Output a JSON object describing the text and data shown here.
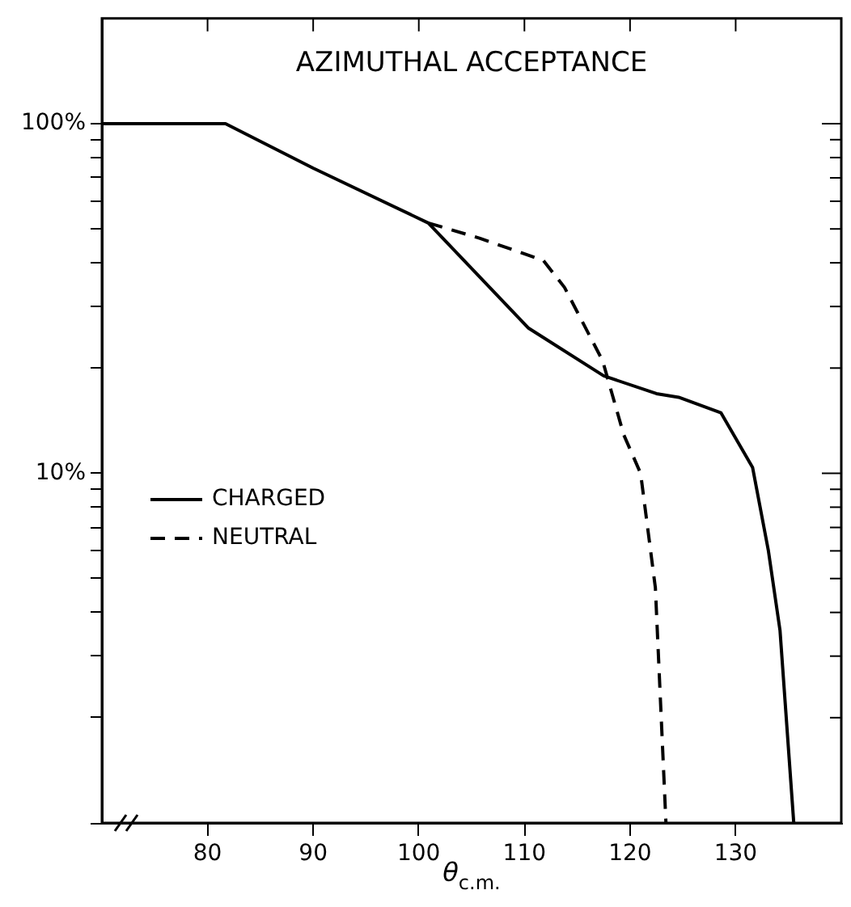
{
  "chart_data": {
    "type": "line",
    "title": "AZIMUTHAL ACCEPTANCE",
    "xlabel": "θ$_{c.m.}$",
    "log": "y",
    "xlim": [
      70,
      140
    ],
    "xticks": [
      80,
      90,
      100,
      110,
      120,
      130
    ],
    "ylim": [
      1,
      200
    ],
    "yticks": [
      {
        "value": 1,
        "label": null
      },
      {
        "value": 2,
        "label": null
      },
      {
        "value": 3,
        "label": null
      },
      {
        "value": 4,
        "label": null
      },
      {
        "value": 5,
        "label": null
      },
      {
        "value": 6,
        "label": null
      },
      {
        "value": 7,
        "label": null
      },
      {
        "value": 8,
        "label": null
      },
      {
        "value": 9,
        "label": null
      },
      {
        "value": 10,
        "label": "10%"
      },
      {
        "value": 20,
        "label": null
      },
      {
        "value": 30,
        "label": null
      },
      {
        "value": 40,
        "label": null
      },
      {
        "value": 50,
        "label": null
      },
      {
        "value": 60,
        "label": null
      },
      {
        "value": 70,
        "label": null
      },
      {
        "value": 80,
        "label": null
      },
      {
        "value": 90,
        "label": null
      },
      {
        "value": 100,
        "label": "100%"
      }
    ],
    "grid": false,
    "legend": "bottom left",
    "marker": "none",
    "series": [
      {
        "name": "CHARGED",
        "color": "#000000",
        "line_style": "solid",
        "x": [
          70,
          81.7,
          90,
          100.9,
          110.4,
          117.5,
          122.5,
          124.6,
          128.6,
          131.6,
          133.1,
          134.2,
          135.5
        ],
        "values": [
          100,
          100,
          74.6,
          52,
          26,
          19,
          16.9,
          16.5,
          14.9,
          10.4,
          6,
          3.55,
          1
        ]
      },
      {
        "name": "NEUTRAL",
        "color": "#000000",
        "line_style": "dashed",
        "x": [
          100.9,
          105.8,
          111.8,
          113.8,
          117.4,
          119.4,
          121,
          122.4,
          123.4
        ],
        "values": [
          52,
          47,
          40.6,
          34,
          21,
          12.9,
          10,
          4.7,
          1
        ]
      }
    ]
  }
}
